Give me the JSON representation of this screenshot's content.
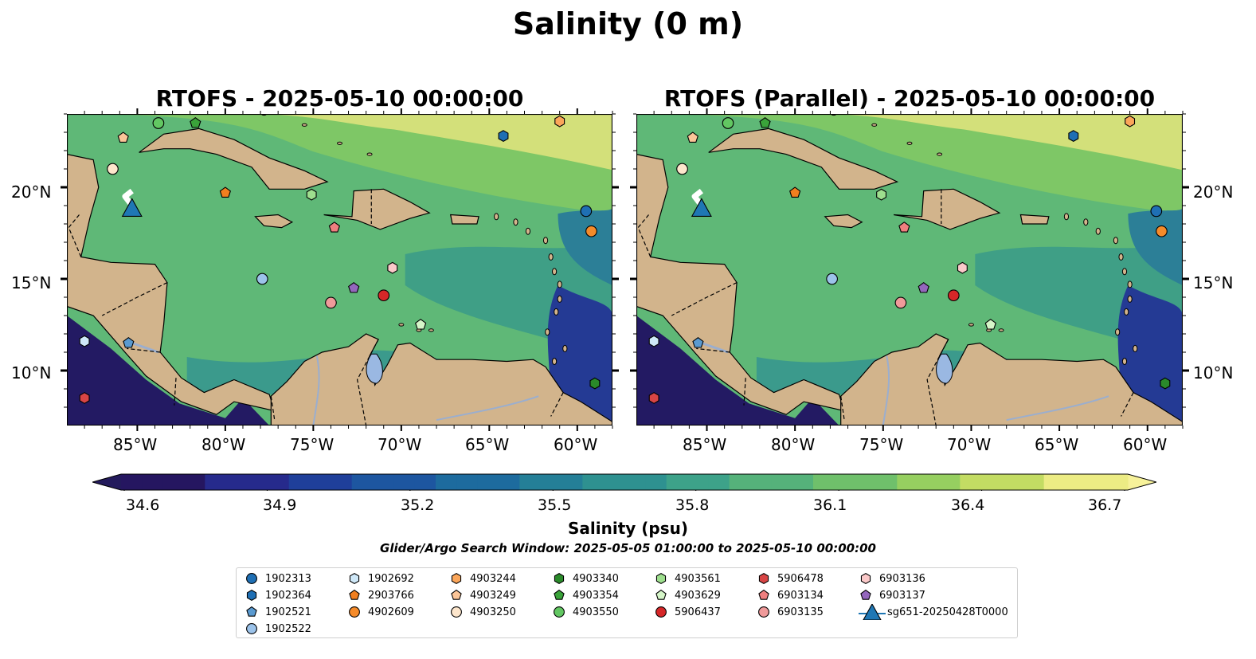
{
  "figure": {
    "suptitle": "Salinity (0 m)",
    "panels": [
      {
        "title": "RTOFS - 2025-05-10 00:00:00"
      },
      {
        "title": "RTOFS (Parallel) - 2025-05-10 00:00:00"
      }
    ],
    "lat_labels": [
      "20°N",
      "15°N",
      "10°N"
    ],
    "lon_labels": [
      "85°W",
      "80°W",
      "75°W",
      "70°W",
      "65°W",
      "60°W"
    ],
    "colorbar": {
      "label": "Salinity (psu)",
      "ticks": [
        "34.6",
        "34.9",
        "35.2",
        "35.5",
        "35.8",
        "36.1",
        "36.4",
        "36.7"
      ],
      "colormap": "summer-gist-earth (dark navy to pale yellow)"
    },
    "search_window": "Glider/Argo Search Window: 2025-05-05 01:00:00 to 2025-05-10 00:00:00"
  },
  "map_data": {
    "type": "map",
    "extent": {
      "lon": [
        -89,
        -58
      ],
      "lat": [
        7,
        24
      ]
    },
    "variable": "sea surface salinity",
    "units": "psu",
    "color_range": [
      34.6,
      36.7
    ],
    "land_color": "#d2b48c",
    "glider_track": [
      [
        -85.3,
        19.8
      ],
      [
        -85.7,
        19.5
      ],
      [
        -85.3,
        19.0
      ]
    ]
  },
  "legend": {
    "items": [
      {
        "label": "1902313",
        "marker": "circle",
        "color": "#1f6fb4",
        "lon": -59.5,
        "lat": 18.7
      },
      {
        "label": "1902364",
        "marker": "hexagon",
        "color": "#1f6fb4",
        "lon": -64.2,
        "lat": 22.8
      },
      {
        "label": "1902521",
        "marker": "pentagon",
        "color": "#5a9ad0",
        "lon": -85.5,
        "lat": 11.5
      },
      {
        "label": "1902522",
        "marker": "circle",
        "color": "#9cc3ea",
        "lon": -77.9,
        "lat": 15.0
      },
      {
        "label": "1902692",
        "marker": "hexagon",
        "color": "#cfe8f8",
        "lon": -88.0,
        "lat": 11.6
      },
      {
        "label": "2903766",
        "marker": "pentagon",
        "color": "#f17f1f",
        "lon": -80.0,
        "lat": 19.7
      },
      {
        "label": "4902609",
        "marker": "circle",
        "color": "#f58b2a",
        "lon": -59.2,
        "lat": 17.6
      },
      {
        "label": "4903244",
        "marker": "hexagon",
        "color": "#fba65a",
        "lon": -61.0,
        "lat": 23.6
      },
      {
        "label": "4903249",
        "marker": "pentagon",
        "color": "#fbc598",
        "lon": -85.8,
        "lat": 22.7
      },
      {
        "label": "4903250",
        "marker": "circle",
        "color": "#fde6cc",
        "lon": -86.4,
        "lat": 21.0
      },
      {
        "label": "4903340",
        "marker": "hexagon",
        "color": "#2a8a2a",
        "lon": -59.0,
        "lat": 9.3
      },
      {
        "label": "4903354",
        "marker": "pentagon",
        "color": "#3aa33a",
        "lon": -81.7,
        "lat": 23.5
      },
      {
        "label": "4903550",
        "marker": "circle",
        "color": "#62c762",
        "lon": -83.8,
        "lat": 23.5
      },
      {
        "label": "4903561",
        "marker": "hexagon",
        "color": "#9edf8e",
        "lon": -75.1,
        "lat": 19.6
      },
      {
        "label": "4903629",
        "marker": "pentagon",
        "color": "#d5f5c8",
        "lon": -68.9,
        "lat": 12.5
      },
      {
        "label": "5906437",
        "marker": "circle",
        "color": "#d62728",
        "lon": -71.0,
        "lat": 14.1
      },
      {
        "label": "5906478",
        "marker": "hexagon",
        "color": "#d84545",
        "lon": -88.0,
        "lat": 8.5
      },
      {
        "label": "5906478",
        "marker": "hexagon",
        "color": "#d84545",
        "lon": -88.0,
        "lat": 8.5,
        "hidden_dup": true
      },
      {
        "label": "6903134",
        "marker": "pentagon",
        "color": "#ef7f7f",
        "lon": -73.8,
        "lat": 17.8
      },
      {
        "label": "6903135",
        "marker": "circle",
        "color": "#f09a9a",
        "lon": -74.0,
        "lat": 13.7
      },
      {
        "label": "6903136",
        "marker": "hexagon",
        "color": "#fbc9c9",
        "lon": -70.5,
        "lat": 15.6
      },
      {
        "label": "6903137",
        "marker": "pentagon",
        "color": "#9467bd",
        "lon": -72.7,
        "lat": 14.5
      },
      {
        "label": "sg651-20250428T0000",
        "marker": "triangle",
        "color": "#1f77b4",
        "lon": -85.3,
        "lat": 18.8
      }
    ]
  }
}
